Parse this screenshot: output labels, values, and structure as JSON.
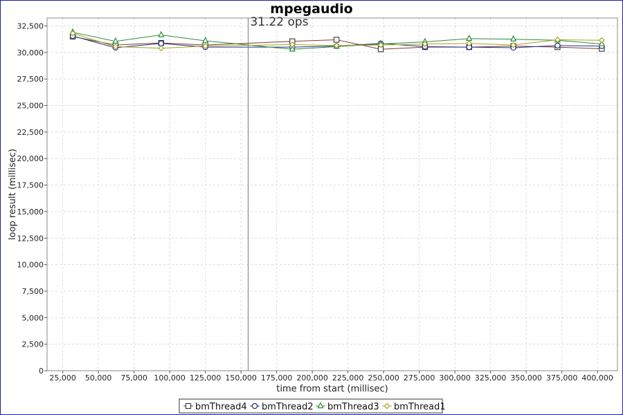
{
  "chart_data": {
    "type": "line",
    "title": "mpegaudio",
    "xlabel": "time from start (millisec)",
    "ylabel": "loop result (millisec)",
    "xlim": [
      14000,
      414000
    ],
    "ylim": [
      0,
      33250
    ],
    "xticks": [
      25000,
      50000,
      75000,
      100000,
      125000,
      150000,
      175000,
      200000,
      225000,
      250000,
      275000,
      300000,
      325000,
      350000,
      375000,
      400000
    ],
    "xtick_labels": [
      "25,000",
      "50,000",
      "75,000",
      "100,000",
      "125,000",
      "150,000",
      "175,000",
      "200,000",
      "225,000",
      "250,000",
      "275,000",
      "300,000",
      "325,000",
      "350,000",
      "375,000",
      "400,000"
    ],
    "yticks": [
      0,
      2500,
      5000,
      7500,
      10000,
      12500,
      15000,
      17500,
      20000,
      22500,
      25000,
      27500,
      30000,
      32500
    ],
    "ytick_labels": [
      "0",
      "2,500",
      "5,000",
      "7,500",
      "10,000",
      "12,500",
      "15,000",
      "17,500",
      "20,000",
      "22,500",
      "25,000",
      "27,500",
      "30,000",
      "32,500"
    ],
    "grid": true,
    "legend_position": "bottom-center",
    "marker_line": {
      "x": 155000,
      "label": "31.22 ops"
    },
    "series": [
      {
        "name": "bmThread4",
        "color": "#7a3a2e",
        "marker": "square",
        "x": [
          32000,
          62000,
          94000,
          125000,
          186000,
          217000,
          248000,
          279000,
          310000,
          341000,
          372000,
          403000
        ],
        "y": [
          31500,
          30700,
          30900,
          30700,
          31050,
          31200,
          30300,
          30500,
          30500,
          30600,
          30500,
          30350
        ]
      },
      {
        "name": "bmThread2",
        "color": "#1c2f8c",
        "marker": "circle",
        "x": [
          32000,
          62000,
          94000,
          125000,
          186000,
          217000,
          248000,
          279000,
          310000,
          341000,
          372000,
          403000
        ],
        "y": [
          31550,
          30450,
          30850,
          30500,
          30500,
          30600,
          30850,
          30550,
          30500,
          30450,
          30650,
          30600
        ]
      },
      {
        "name": "bmThread3",
        "color": "#2e8b3a",
        "marker": "triangle",
        "x": [
          32000,
          62000,
          94000,
          125000,
          186000,
          217000,
          248000,
          279000,
          310000,
          341000,
          372000,
          403000
        ],
        "y": [
          31900,
          31050,
          31650,
          31100,
          30300,
          30550,
          30800,
          31000,
          31300,
          31250,
          31150,
          30800
        ]
      },
      {
        "name": "bmThread1",
        "color": "#a8a020",
        "marker": "diamond",
        "x": [
          32000,
          62000,
          94000,
          125000,
          186000,
          217000,
          248000,
          279000,
          310000,
          341000,
          372000,
          403000
        ],
        "y": [
          31800,
          30550,
          30400,
          30600,
          30750,
          30650,
          30700,
          30800,
          30850,
          30700,
          31200,
          31150
        ]
      }
    ]
  }
}
